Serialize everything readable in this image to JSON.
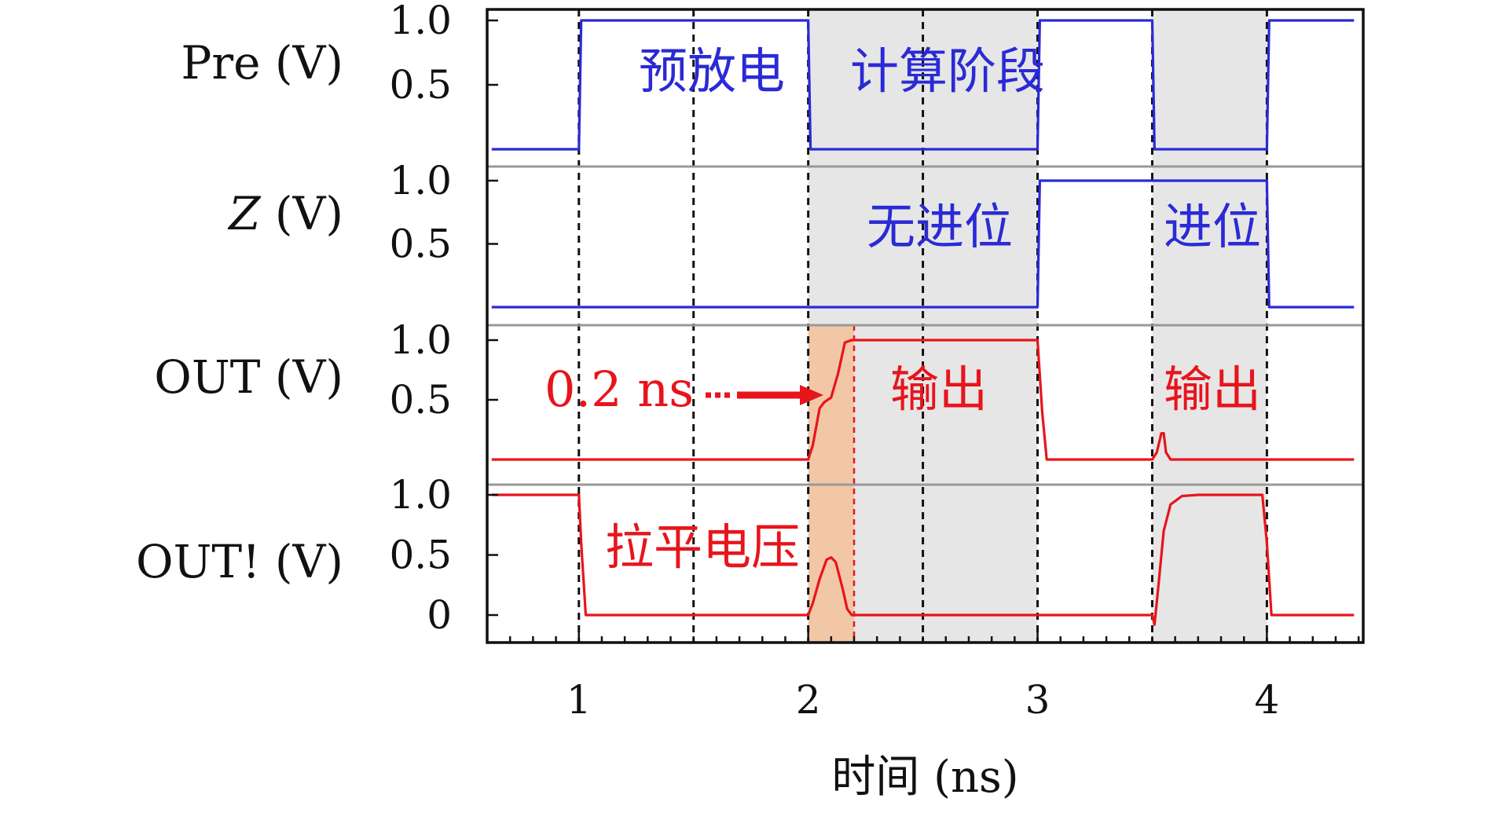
{
  "chart_data": {
    "type": "line",
    "xlabel": "时间 (ns)",
    "xlim": [
      0.6,
      4.42
    ],
    "x_ticks": [
      1,
      2,
      3,
      4
    ],
    "vertical_markers": [
      1,
      1.5,
      2,
      2.5,
      3,
      3.5,
      4
    ],
    "shaded_regions": [
      {
        "x": [
          2,
          3
        ],
        "color": "#e6e6e6"
      },
      {
        "x": [
          3.5,
          4
        ],
        "color": "#e6e6e6"
      },
      {
        "x": [
          2,
          2.2
        ],
        "color": "#f2c7a6",
        "panels": [
          "OUT",
          "OUT!"
        ]
      }
    ],
    "panels": [
      {
        "id": "Pre",
        "label": "Pre (V)",
        "ylim": [
          -0.05,
          1.15
        ],
        "y_ticks": [
          "1.0",
          "0.5"
        ],
        "color": "#2a2ad6",
        "series": [
          {
            "x": [
              0.62,
              1.0,
              1.01,
              2.0,
              2.01,
              3.0,
              3.01,
              3.5,
              3.51,
              4.0,
              4.01,
              4.38
            ],
            "y": [
              0.0,
              0.0,
              1.0,
              1.0,
              0.0,
              0.0,
              1.0,
              1.0,
              0.0,
              0.0,
              1.0,
              1.0
            ]
          }
        ],
        "annotations": [
          {
            "text": "预放电",
            "x": 1.5,
            "y": 0.5
          },
          {
            "text": "计算阶段",
            "x": 2.58,
            "y": 0.5
          }
        ]
      },
      {
        "id": "Z",
        "label": "Z (V)",
        "ylim": [
          -0.05,
          1.15
        ],
        "y_ticks": [
          "1.0",
          "0.5"
        ],
        "color": "#2a2ad6",
        "series": [
          {
            "x": [
              0.62,
              3.0,
              3.01,
              4.0,
              4.01,
              4.38
            ],
            "y": [
              0.0,
              0.0,
              1.0,
              1.0,
              0.0,
              0.0
            ]
          }
        ],
        "annotations": [
          {
            "text": "无进位",
            "x": 2.55,
            "y": 0.5
          },
          {
            "text": "进位",
            "x": 3.74,
            "y": 0.5
          }
        ]
      },
      {
        "id": "OUT",
        "label": "OUT (V)",
        "ylim": [
          -0.05,
          1.15
        ],
        "y_ticks": [
          "1.0",
          "0.5"
        ],
        "color": "#e8141c",
        "series": [
          {
            "x": [
              0.62,
              2.0,
              2.02,
              2.05,
              2.07,
              2.1,
              2.13,
              2.16,
              2.19,
              2.2,
              3.0,
              3.02,
              3.04,
              3.5,
              3.52,
              3.54,
              3.55,
              3.56,
              3.58,
              4.38
            ],
            "y": [
              0.0,
              0.0,
              0.12,
              0.43,
              0.48,
              0.52,
              0.72,
              0.98,
              1.0,
              1.0,
              1.0,
              0.4,
              0.0,
              0.0,
              0.06,
              0.22,
              0.22,
              0.06,
              0.0,
              0.0
            ]
          }
        ],
        "annotations": [
          {
            "text": "0.2 ns",
            "x": 1.2,
            "y": 0.5
          },
          {
            "text": "输出",
            "x": 2.45,
            "y": 0.5
          },
          {
            "text": "输出",
            "x": 3.74,
            "y": 0.5
          }
        ]
      },
      {
        "id": "OUT!",
        "label": "OUT! (V)",
        "ylim": [
          -0.05,
          1.15
        ],
        "y_ticks": [
          "1.0",
          "0.5",
          "0"
        ],
        "color": "#e8141c",
        "series": [
          {
            "x": [
              0.62,
              1.0,
              1.01,
              1.03,
              2.0,
              2.02,
              2.05,
              2.08,
              2.1,
              2.12,
              2.15,
              2.17,
              2.19,
              3.0,
              3.5,
              3.51,
              3.53,
              3.55,
              3.58,
              3.63,
              3.7,
              3.98,
              4.0,
              4.02,
              4.38
            ],
            "y": [
              1.0,
              1.0,
              0.6,
              0.0,
              0.0,
              0.1,
              0.3,
              0.46,
              0.48,
              0.44,
              0.22,
              0.05,
              0.0,
              0.0,
              0.0,
              -0.08,
              0.3,
              0.7,
              0.92,
              0.99,
              1.0,
              1.0,
              0.6,
              0.0,
              0.0
            ]
          }
        ],
        "annotations": [
          {
            "text": "拉平电压",
            "x": 1.5,
            "y": 0.5
          }
        ]
      }
    ]
  }
}
